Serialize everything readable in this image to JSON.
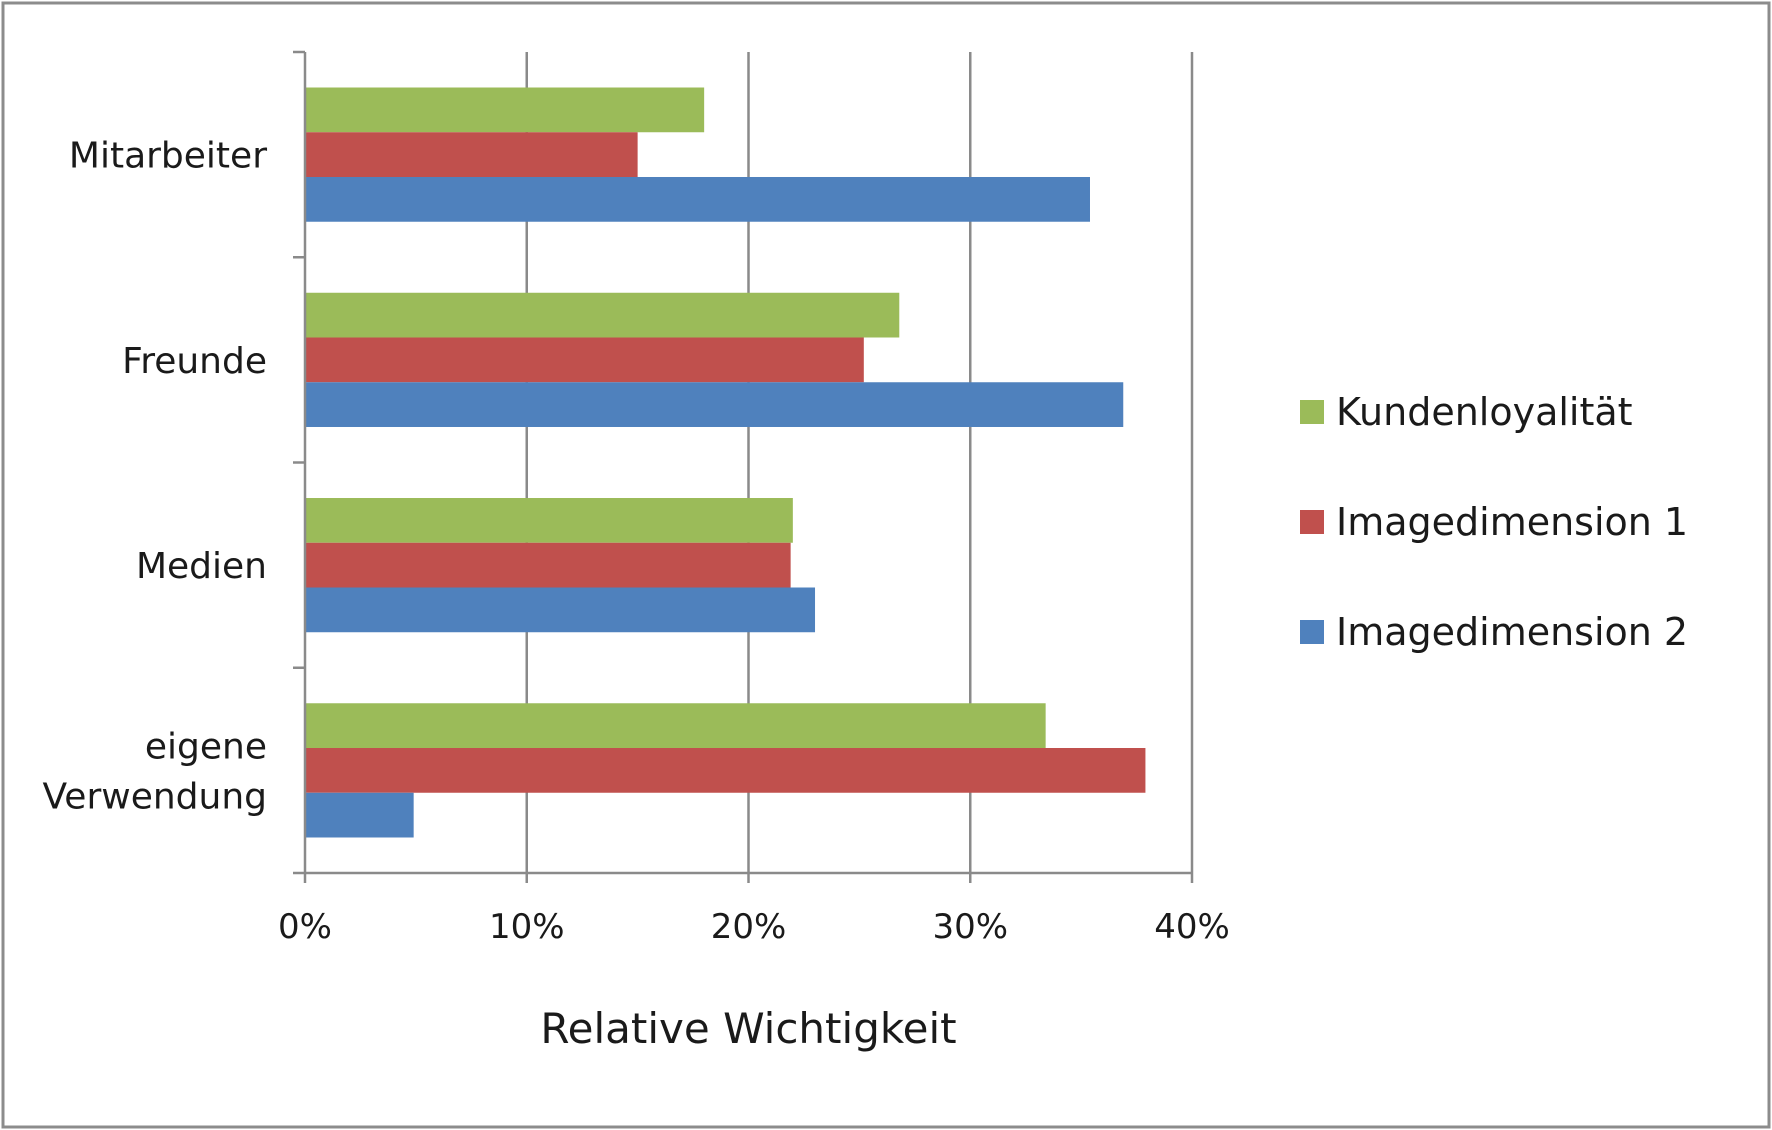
{
  "chart_data": {
    "type": "bar",
    "orientation": "horizontal",
    "categories": [
      "Mitarbeiter",
      "Freunde",
      "Medien",
      "eigene Verwendung"
    ],
    "category_lines": [
      [
        "Mitarbeiter"
      ],
      [
        "Freunde"
      ],
      [
        "Medien"
      ],
      [
        "eigene",
        "Verwendung"
      ]
    ],
    "series": [
      {
        "name": "Kundenloyalität",
        "color": "#9bbb59",
        "values": [
          18.0,
          26.8,
          22.0,
          33.4
        ]
      },
      {
        "name": "Imagedimension 1",
        "color": "#c0504d",
        "values": [
          15.0,
          25.2,
          21.9,
          37.9
        ]
      },
      {
        "name": "Imagedimension 2",
        "color": "#4f81bd",
        "values": [
          35.4,
          36.9,
          23.0,
          4.9
        ]
      }
    ],
    "x_ticks": [
      "0%",
      "10%",
      "20%",
      "30%",
      "40%"
    ],
    "xlim": [
      0,
      40
    ],
    "xlabel": "Relative Wichtigkeit",
    "ylabel": "",
    "title": "",
    "grid": true,
    "legend_position": "right"
  }
}
